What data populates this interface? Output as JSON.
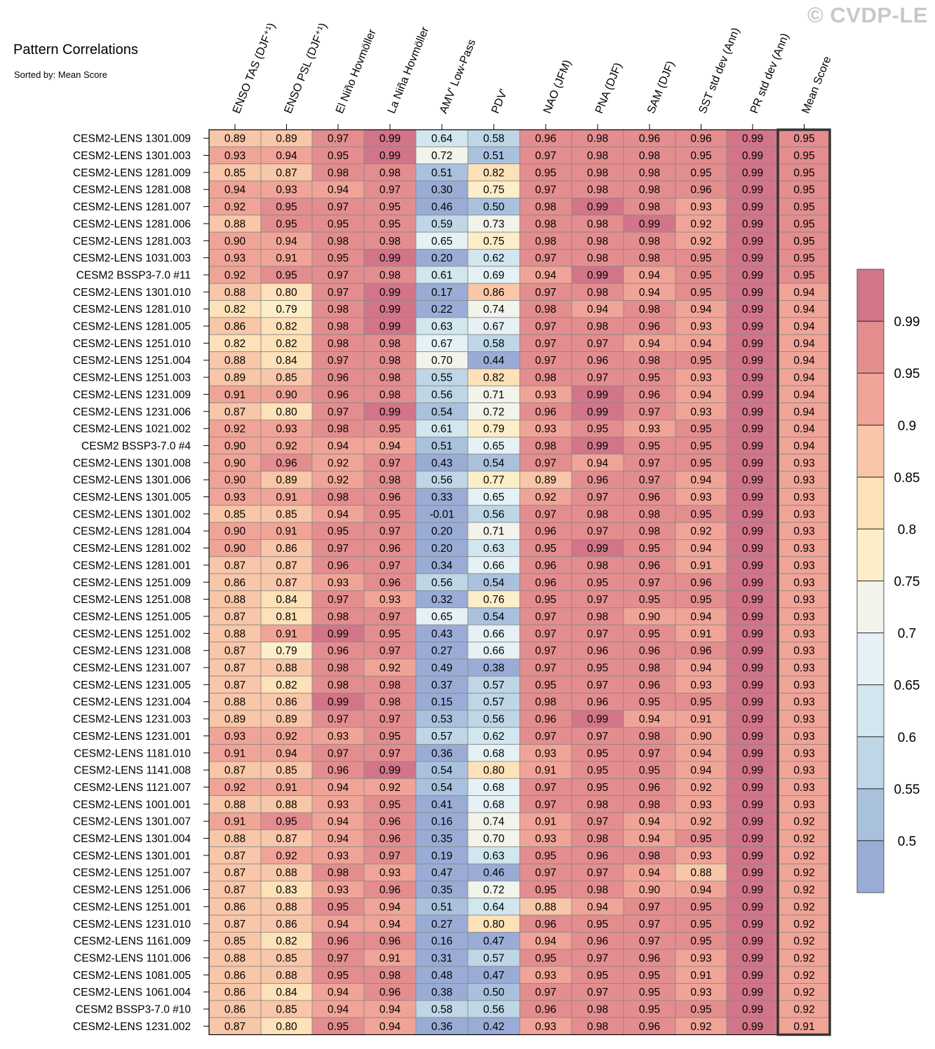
{
  "watermark": "© CVDP-LE",
  "chart_data": {
    "type": "heatmap",
    "title": "Pattern Correlations",
    "subtitle": "Sorted by: Mean Score",
    "columns": [
      "ENSO TAS (DJF⁺¹)",
      "ENSO PSL (DJF⁺¹)",
      "El Niño Hovmöller",
      "La Niña Hovmöller",
      "AMV' Low-Pass",
      "PDV'",
      "NAO (JFM)",
      "PNA (DJF)",
      "SAM (DJF)",
      "SST std dev (Ann)",
      "PR std dev (Ann)",
      "Mean Score"
    ],
    "rows": [
      "CESM2-LENS 1301.009",
      "CESM2-LENS 1301.003",
      "CESM2-LENS 1281.009",
      "CESM2-LENS 1281.008",
      "CESM2-LENS 1281.007",
      "CESM2-LENS 1281.006",
      "CESM2-LENS 1281.003",
      "CESM2-LENS 1031.003",
      "CESM2 BSSP3-7.0 #11",
      "CESM2-LENS 1301.010",
      "CESM2-LENS 1281.010",
      "CESM2-LENS 1281.005",
      "CESM2-LENS 1251.010",
      "CESM2-LENS 1251.004",
      "CESM2-LENS 1251.003",
      "CESM2-LENS 1231.009",
      "CESM2-LENS 1231.006",
      "CESM2-LENS 1021.002",
      "CESM2 BSSP3-7.0 #4",
      "CESM2-LENS 1301.008",
      "CESM2-LENS 1301.006",
      "CESM2-LENS 1301.005",
      "CESM2-LENS 1301.002",
      "CESM2-LENS 1281.004",
      "CESM2-LENS 1281.002",
      "CESM2-LENS 1281.001",
      "CESM2-LENS 1251.009",
      "CESM2-LENS 1251.008",
      "CESM2-LENS 1251.005",
      "CESM2-LENS 1251.002",
      "CESM2-LENS 1231.008",
      "CESM2-LENS 1231.007",
      "CESM2-LENS 1231.005",
      "CESM2-LENS 1231.004",
      "CESM2-LENS 1231.003",
      "CESM2-LENS 1231.001",
      "CESM2-LENS 1181.010",
      "CESM2-LENS 1141.008",
      "CESM2-LENS 1121.007",
      "CESM2-LENS 1001.001",
      "CESM2-LENS 1301.007",
      "CESM2-LENS 1301.004",
      "CESM2-LENS 1301.001",
      "CESM2-LENS 1251.007",
      "CESM2-LENS 1251.006",
      "CESM2-LENS 1251.001",
      "CESM2-LENS 1231.010",
      "CESM2-LENS 1161.009",
      "CESM2-LENS 1101.006",
      "CESM2-LENS 1081.005",
      "CESM2-LENS 1061.004",
      "CESM2 BSSP3-7.0 #10",
      "CESM2-LENS 1231.002"
    ],
    "values": [
      [
        "0.89",
        "0.89",
        "0.97",
        "0.99",
        "0.64",
        "0.58",
        "0.96",
        "0.98",
        "0.96",
        "0.96",
        "0.99",
        "0.95"
      ],
      [
        "0.93",
        "0.94",
        "0.95",
        "0.99",
        "0.72",
        "0.51",
        "0.97",
        "0.98",
        "0.98",
        "0.95",
        "0.99",
        "0.95"
      ],
      [
        "0.85",
        "0.87",
        "0.98",
        "0.98",
        "0.51",
        "0.82",
        "0.95",
        "0.98",
        "0.98",
        "0.95",
        "0.99",
        "0.95"
      ],
      [
        "0.94",
        "0.93",
        "0.94",
        "0.97",
        "0.30",
        "0.75",
        "0.97",
        "0.98",
        "0.98",
        "0.96",
        "0.99",
        "0.95"
      ],
      [
        "0.92",
        "0.95",
        "0.97",
        "0.95",
        "0.46",
        "0.50",
        "0.98",
        "0.99",
        "0.98",
        "0.93",
        "0.99",
        "0.95"
      ],
      [
        "0.88",
        "0.95",
        "0.95",
        "0.95",
        "0.59",
        "0.73",
        "0.98",
        "0.98",
        "0.99",
        "0.92",
        "0.99",
        "0.95"
      ],
      [
        "0.90",
        "0.94",
        "0.98",
        "0.98",
        "0.65",
        "0.75",
        "0.98",
        "0.98",
        "0.98",
        "0.92",
        "0.99",
        "0.95"
      ],
      [
        "0.93",
        "0.91",
        "0.95",
        "0.99",
        "0.20",
        "0.62",
        "0.97",
        "0.98",
        "0.98",
        "0.95",
        "0.99",
        "0.95"
      ],
      [
        "0.92",
        "0.95",
        "0.97",
        "0.98",
        "0.61",
        "0.69",
        "0.94",
        "0.99",
        "0.94",
        "0.95",
        "0.99",
        "0.95"
      ],
      [
        "0.88",
        "0.80",
        "0.97",
        "0.99",
        "0.17",
        "0.86",
        "0.97",
        "0.98",
        "0.94",
        "0.95",
        "0.99",
        "0.94"
      ],
      [
        "0.82",
        "0.79",
        "0.98",
        "0.99",
        "0.22",
        "0.74",
        "0.98",
        "0.94",
        "0.98",
        "0.94",
        "0.99",
        "0.94"
      ],
      [
        "0.86",
        "0.82",
        "0.98",
        "0.99",
        "0.63",
        "0.67",
        "0.97",
        "0.98",
        "0.96",
        "0.93",
        "0.99",
        "0.94"
      ],
      [
        "0.82",
        "0.82",
        "0.98",
        "0.98",
        "0.67",
        "0.58",
        "0.97",
        "0.97",
        "0.94",
        "0.94",
        "0.99",
        "0.94"
      ],
      [
        "0.88",
        "0.84",
        "0.97",
        "0.98",
        "0.70",
        "0.44",
        "0.97",
        "0.96",
        "0.98",
        "0.95",
        "0.99",
        "0.94"
      ],
      [
        "0.89",
        "0.85",
        "0.96",
        "0.98",
        "0.55",
        "0.82",
        "0.98",
        "0.97",
        "0.95",
        "0.93",
        "0.99",
        "0.94"
      ],
      [
        "0.91",
        "0.90",
        "0.96",
        "0.98",
        "0.56",
        "0.71",
        "0.93",
        "0.99",
        "0.96",
        "0.94",
        "0.99",
        "0.94"
      ],
      [
        "0.87",
        "0.80",
        "0.97",
        "0.99",
        "0.54",
        "0.72",
        "0.96",
        "0.99",
        "0.97",
        "0.93",
        "0.99",
        "0.94"
      ],
      [
        "0.92",
        "0.93",
        "0.98",
        "0.95",
        "0.61",
        "0.79",
        "0.93",
        "0.95",
        "0.93",
        "0.95",
        "0.99",
        "0.94"
      ],
      [
        "0.90",
        "0.92",
        "0.94",
        "0.94",
        "0.51",
        "0.65",
        "0.98",
        "0.99",
        "0.95",
        "0.95",
        "0.99",
        "0.94"
      ],
      [
        "0.90",
        "0.96",
        "0.92",
        "0.97",
        "0.43",
        "0.54",
        "0.97",
        "0.94",
        "0.97",
        "0.95",
        "0.99",
        "0.93"
      ],
      [
        "0.90",
        "0.89",
        "0.92",
        "0.98",
        "0.56",
        "0.77",
        "0.89",
        "0.96",
        "0.97",
        "0.94",
        "0.99",
        "0.93"
      ],
      [
        "0.93",
        "0.91",
        "0.98",
        "0.96",
        "0.33",
        "0.65",
        "0.92",
        "0.97",
        "0.96",
        "0.93",
        "0.99",
        "0.93"
      ],
      [
        "0.85",
        "0.85",
        "0.94",
        "0.95",
        "-0.01",
        "0.56",
        "0.97",
        "0.98",
        "0.98",
        "0.95",
        "0.99",
        "0.93"
      ],
      [
        "0.90",
        "0.91",
        "0.95",
        "0.97",
        "0.20",
        "0.71",
        "0.96",
        "0.97",
        "0.98",
        "0.92",
        "0.99",
        "0.93"
      ],
      [
        "0.90",
        "0.86",
        "0.97",
        "0.96",
        "0.20",
        "0.63",
        "0.95",
        "0.99",
        "0.95",
        "0.94",
        "0.99",
        "0.93"
      ],
      [
        "0.87",
        "0.87",
        "0.96",
        "0.97",
        "0.34",
        "0.66",
        "0.96",
        "0.98",
        "0.96",
        "0.91",
        "0.99",
        "0.93"
      ],
      [
        "0.86",
        "0.87",
        "0.93",
        "0.96",
        "0.56",
        "0.54",
        "0.96",
        "0.95",
        "0.97",
        "0.96",
        "0.99",
        "0.93"
      ],
      [
        "0.88",
        "0.84",
        "0.97",
        "0.93",
        "0.32",
        "0.76",
        "0.95",
        "0.97",
        "0.95",
        "0.95",
        "0.99",
        "0.93"
      ],
      [
        "0.87",
        "0.81",
        "0.98",
        "0.97",
        "0.65",
        "0.54",
        "0.97",
        "0.98",
        "0.90",
        "0.94",
        "0.99",
        "0.93"
      ],
      [
        "0.88",
        "0.91",
        "0.99",
        "0.95",
        "0.43",
        "0.66",
        "0.97",
        "0.97",
        "0.95",
        "0.91",
        "0.99",
        "0.93"
      ],
      [
        "0.87",
        "0.79",
        "0.96",
        "0.97",
        "0.27",
        "0.66",
        "0.97",
        "0.96",
        "0.96",
        "0.96",
        "0.99",
        "0.93"
      ],
      [
        "0.87",
        "0.88",
        "0.98",
        "0.92",
        "0.49",
        "0.38",
        "0.97",
        "0.95",
        "0.98",
        "0.94",
        "0.99",
        "0.93"
      ],
      [
        "0.87",
        "0.82",
        "0.98",
        "0.98",
        "0.37",
        "0.57",
        "0.95",
        "0.97",
        "0.96",
        "0.93",
        "0.99",
        "0.93"
      ],
      [
        "0.88",
        "0.86",
        "0.99",
        "0.98",
        "0.15",
        "0.57",
        "0.98",
        "0.96",
        "0.95",
        "0.95",
        "0.99",
        "0.93"
      ],
      [
        "0.89",
        "0.89",
        "0.97",
        "0.97",
        "0.53",
        "0.56",
        "0.96",
        "0.99",
        "0.94",
        "0.91",
        "0.99",
        "0.93"
      ],
      [
        "0.93",
        "0.92",
        "0.93",
        "0.95",
        "0.57",
        "0.62",
        "0.97",
        "0.97",
        "0.98",
        "0.90",
        "0.99",
        "0.93"
      ],
      [
        "0.91",
        "0.94",
        "0.97",
        "0.97",
        "0.36",
        "0.68",
        "0.93",
        "0.95",
        "0.97",
        "0.94",
        "0.99",
        "0.93"
      ],
      [
        "0.87",
        "0.85",
        "0.96",
        "0.99",
        "0.54",
        "0.80",
        "0.91",
        "0.95",
        "0.95",
        "0.94",
        "0.99",
        "0.93"
      ],
      [
        "0.92",
        "0.91",
        "0.94",
        "0.92",
        "0.54",
        "0.68",
        "0.97",
        "0.95",
        "0.96",
        "0.92",
        "0.99",
        "0.93"
      ],
      [
        "0.88",
        "0.88",
        "0.93",
        "0.95",
        "0.41",
        "0.68",
        "0.97",
        "0.98",
        "0.98",
        "0.93",
        "0.99",
        "0.93"
      ],
      [
        "0.91",
        "0.95",
        "0.94",
        "0.96",
        "0.16",
        "0.74",
        "0.91",
        "0.97",
        "0.94",
        "0.92",
        "0.99",
        "0.92"
      ],
      [
        "0.88",
        "0.87",
        "0.94",
        "0.96",
        "0.35",
        "0.70",
        "0.93",
        "0.98",
        "0.94",
        "0.95",
        "0.99",
        "0.92"
      ],
      [
        "0.87",
        "0.92",
        "0.93",
        "0.97",
        "0.19",
        "0.63",
        "0.95",
        "0.96",
        "0.98",
        "0.93",
        "0.99",
        "0.92"
      ],
      [
        "0.87",
        "0.88",
        "0.98",
        "0.93",
        "0.47",
        "0.46",
        "0.97",
        "0.97",
        "0.94",
        "0.88",
        "0.99",
        "0.92"
      ],
      [
        "0.87",
        "0.83",
        "0.93",
        "0.96",
        "0.35",
        "0.72",
        "0.95",
        "0.98",
        "0.90",
        "0.94",
        "0.99",
        "0.92"
      ],
      [
        "0.86",
        "0.88",
        "0.95",
        "0.94",
        "0.51",
        "0.64",
        "0.88",
        "0.94",
        "0.97",
        "0.95",
        "0.99",
        "0.92"
      ],
      [
        "0.87",
        "0.86",
        "0.94",
        "0.94",
        "0.27",
        "0.80",
        "0.96",
        "0.95",
        "0.97",
        "0.95",
        "0.99",
        "0.92"
      ],
      [
        "0.85",
        "0.82",
        "0.96",
        "0.96",
        "0.16",
        "0.47",
        "0.94",
        "0.96",
        "0.97",
        "0.95",
        "0.99",
        "0.92"
      ],
      [
        "0.88",
        "0.85",
        "0.97",
        "0.91",
        "0.31",
        "0.57",
        "0.95",
        "0.97",
        "0.96",
        "0.93",
        "0.99",
        "0.92"
      ],
      [
        "0.86",
        "0.88",
        "0.95",
        "0.98",
        "0.48",
        "0.47",
        "0.93",
        "0.95",
        "0.95",
        "0.91",
        "0.99",
        "0.92"
      ],
      [
        "0.86",
        "0.84",
        "0.94",
        "0.96",
        "0.38",
        "0.50",
        "0.97",
        "0.97",
        "0.95",
        "0.93",
        "0.99",
        "0.92"
      ],
      [
        "0.86",
        "0.85",
        "0.94",
        "0.94",
        "0.58",
        "0.56",
        "0.96",
        "0.98",
        "0.95",
        "0.95",
        "0.99",
        "0.92"
      ],
      [
        "0.87",
        "0.80",
        "0.95",
        "0.94",
        "0.36",
        "0.42",
        "0.93",
        "0.98",
        "0.96",
        "0.92",
        "0.99",
        "0.91"
      ]
    ],
    "colorbar": {
      "ticks": [
        "0.99",
        "0.95",
        "0.9",
        "0.85",
        "0.8",
        "0.75",
        "0.7",
        "0.65",
        "0.6",
        "0.55",
        "0.5"
      ],
      "thresholds": [
        0.5,
        0.55,
        0.6,
        0.65,
        0.7,
        0.75,
        0.8,
        0.85,
        0.9,
        0.95,
        0.99
      ],
      "colors": [
        "#9aacd6",
        "#a9c1dd",
        "#bed6e6",
        "#d1e6ee",
        "#e5f1f5",
        "#f2f3ea",
        "#fbeec9",
        "#fde1b8",
        "#f8c6a8",
        "#f0a497",
        "#e38d8f",
        "#d27589"
      ]
    },
    "highlighted_column": "Mean Score"
  }
}
